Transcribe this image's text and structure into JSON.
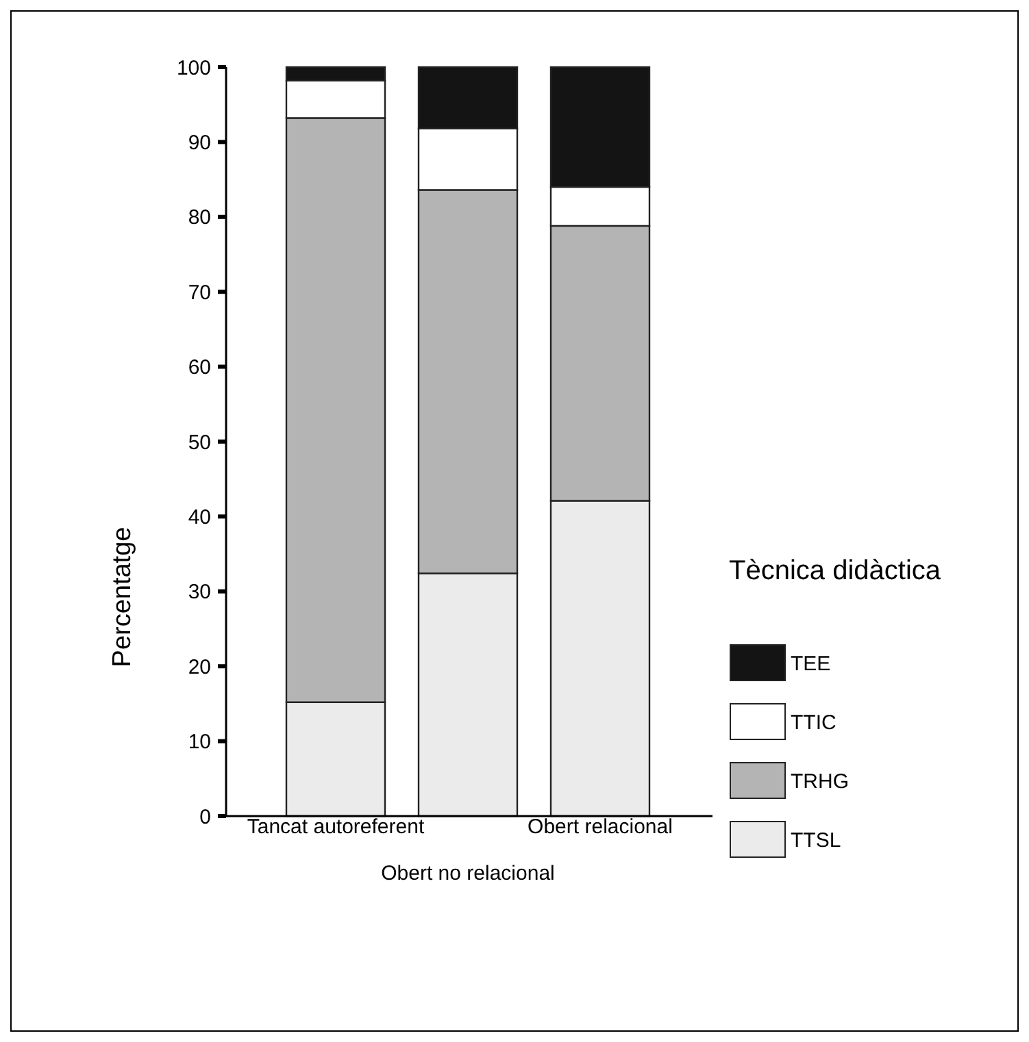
{
  "chart_data": {
    "type": "bar",
    "stacked": true,
    "categories": [
      "Tancat autoreferent",
      "Obert no relacional",
      "Obert relacional"
    ],
    "ylabel": "Percentatge",
    "legend_title": "Tècnica didàctica",
    "legend": "right",
    "ylim": [
      0,
      100
    ],
    "yticks": [
      0,
      10,
      20,
      30,
      40,
      50,
      60,
      70,
      80,
      90,
      100
    ],
    "grid": false,
    "series": [
      {
        "name": "TTSL",
        "color": "#ebebeb",
        "values": [
          15.2,
          32.4,
          42.1
        ]
      },
      {
        "name": "TRHG",
        "color": "#b4b4b4",
        "values": [
          78.0,
          51.2,
          36.7
        ]
      },
      {
        "name": "TTIC",
        "color": "#ffffff",
        "values": [
          5.0,
          8.2,
          5.2
        ]
      },
      {
        "name": "TEE",
        "color": "#141414",
        "values": [
          1.8,
          8.2,
          16.0
        ]
      }
    ]
  }
}
